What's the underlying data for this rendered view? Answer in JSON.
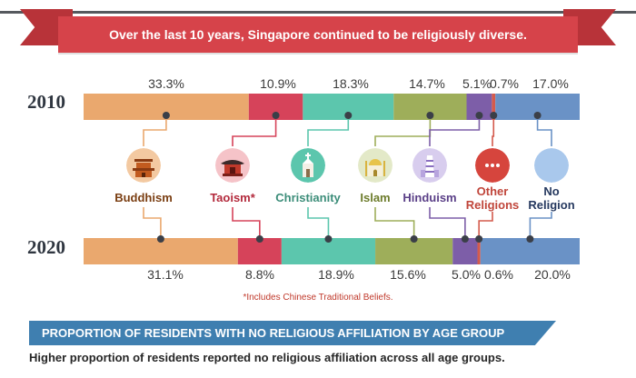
{
  "header": {
    "banner": "Over the last 10 years, Singapore continued to be religiously diverse."
  },
  "footnote": "*Includes Chinese Traditional Beliefs.",
  "section": {
    "title": "PROPORTION OF RESIDENTS WITH NO RELIGIOUS AFFILIATION BY AGE GROUP",
    "subtitle": "Higher proportion of residents reported no religious affiliation across all age groups."
  },
  "chart_data": {
    "type": "bar",
    "orientation": "horizontal-stacked",
    "unit": "%",
    "categories": [
      "2010",
      "2020"
    ],
    "series": [
      {
        "name": "Buddhism",
        "label": "Buddhism",
        "color": "#eaa86e",
        "label_color": "#7a3e12",
        "icon": "pagoda-icon",
        "values": [
          33.3,
          31.1
        ],
        "value_labels": [
          "33.3%",
          "31.1%"
        ]
      },
      {
        "name": "Taoism",
        "label": "Taoism*",
        "color": "#d6435a",
        "label_color": "#b32a3c",
        "icon": "chinese-temple-icon",
        "values": [
          10.9,
          8.8
        ],
        "value_labels": [
          "10.9%",
          "8.8%"
        ]
      },
      {
        "name": "Christianity",
        "label": "Christianity",
        "color": "#5cc6ad",
        "label_color": "#3c8d79",
        "icon": "church-icon",
        "values": [
          18.3,
          18.9
        ],
        "value_labels": [
          "18.3%",
          "18.9%"
        ]
      },
      {
        "name": "Islam",
        "label": "Islam",
        "color": "#9eae5a",
        "label_color": "#6d7c2c",
        "icon": "mosque-icon",
        "values": [
          14.7,
          15.6
        ],
        "value_labels": [
          "14.7%",
          "15.6%"
        ]
      },
      {
        "name": "Hinduism",
        "label": "Hinduism",
        "color": "#7d5ea8",
        "label_color": "#5a3f87",
        "icon": "hindu-temple-icon",
        "values": [
          5.1,
          5.0
        ],
        "value_labels": [
          "5.1%",
          "5.0%"
        ]
      },
      {
        "name": "Other Religions",
        "label": "Other Religions",
        "color": "#d45a4c",
        "label_color": "#c0453a",
        "icon": "ellipsis-icon",
        "values": [
          0.7,
          0.6
        ],
        "value_labels": [
          "0.7%",
          "0.6%"
        ]
      },
      {
        "name": "No Religion",
        "label": "No Religion",
        "color": "#6a92c6",
        "label_color": "#26395f",
        "icon": "empty-circle-icon",
        "values": [
          17.0,
          20.0
        ],
        "value_labels": [
          "17.0%",
          "20.0%"
        ]
      }
    ]
  }
}
